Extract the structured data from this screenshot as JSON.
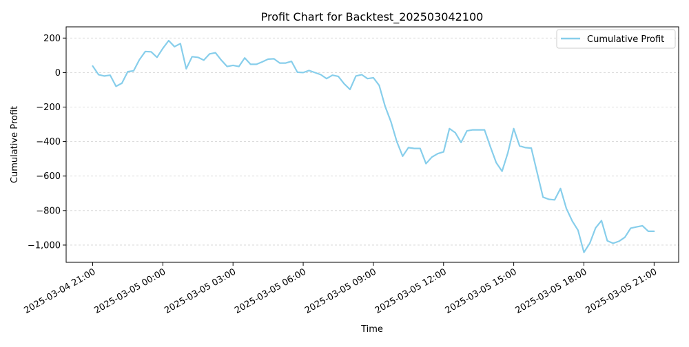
{
  "chart_data": {
    "type": "line",
    "title": "Profit Chart for Backtest_202503042100",
    "xlabel": "Time",
    "ylabel": "Cumulative Profit",
    "x_is_time": true,
    "xlim": [
      "2025-03-04 19:52",
      "2025-03-05 22:03"
    ],
    "ylim": [
      -1100,
      265
    ],
    "grid": {
      "y": true,
      "x": false,
      "style": "dashed"
    },
    "legend": {
      "position": "top-right",
      "entries": [
        "Cumulative Profit"
      ]
    },
    "x_ticks": [
      {
        "value": "2025-03-04 21:00",
        "label": "2025-03-04 21:00"
      },
      {
        "value": "2025-03-05 00:00",
        "label": "2025-03-05 00:00"
      },
      {
        "value": "2025-03-05 03:00",
        "label": "2025-03-05 03:00"
      },
      {
        "value": "2025-03-05 06:00",
        "label": "2025-03-05 06:00"
      },
      {
        "value": "2025-03-05 09:00",
        "label": "2025-03-05 09:00"
      },
      {
        "value": "2025-03-05 12:00",
        "label": "2025-03-05 12:00"
      },
      {
        "value": "2025-03-05 15:00",
        "label": "2025-03-05 15:00"
      },
      {
        "value": "2025-03-05 18:00",
        "label": "2025-03-05 18:00"
      },
      {
        "value": "2025-03-05 21:00",
        "label": "2025-03-05 21:00"
      }
    ],
    "y_ticks": [
      {
        "value": 200,
        "label": "200"
      },
      {
        "value": 0,
        "label": "0"
      },
      {
        "value": -200,
        "label": "−200"
      },
      {
        "value": -400,
        "label": "−400"
      },
      {
        "value": -600,
        "label": "−600"
      },
      {
        "value": -800,
        "label": "−800"
      },
      {
        "value": -1000,
        "label": "−1,000"
      }
    ],
    "series": [
      {
        "name": "Cumulative Profit",
        "color": "#87CEEB",
        "x": [
          "2025-03-04 21:00",
          "2025-03-04 21:15",
          "2025-03-04 21:30",
          "2025-03-04 21:45",
          "2025-03-04 22:00",
          "2025-03-04 22:15",
          "2025-03-04 22:30",
          "2025-03-04 22:45",
          "2025-03-04 23:00",
          "2025-03-04 23:15",
          "2025-03-04 23:30",
          "2025-03-04 23:45",
          "2025-03-05 00:00",
          "2025-03-05 00:15",
          "2025-03-05 00:30",
          "2025-03-05 00:45",
          "2025-03-05 01:00",
          "2025-03-05 01:15",
          "2025-03-05 01:30",
          "2025-03-05 01:45",
          "2025-03-05 02:00",
          "2025-03-05 02:15",
          "2025-03-05 02:30",
          "2025-03-05 02:45",
          "2025-03-05 03:00",
          "2025-03-05 03:15",
          "2025-03-05 03:30",
          "2025-03-05 03:45",
          "2025-03-05 04:00",
          "2025-03-05 04:15",
          "2025-03-05 04:30",
          "2025-03-05 04:45",
          "2025-03-05 05:00",
          "2025-03-05 05:15",
          "2025-03-05 05:30",
          "2025-03-05 05:45",
          "2025-03-05 06:00",
          "2025-03-05 06:15",
          "2025-03-05 06:30",
          "2025-03-05 06:45",
          "2025-03-05 07:00",
          "2025-03-05 07:15",
          "2025-03-05 07:30",
          "2025-03-05 07:45",
          "2025-03-05 08:00",
          "2025-03-05 08:15",
          "2025-03-05 08:30",
          "2025-03-05 08:45",
          "2025-03-05 09:00",
          "2025-03-05 09:15",
          "2025-03-05 09:30",
          "2025-03-05 09:45",
          "2025-03-05 10:00",
          "2025-03-05 10:15",
          "2025-03-05 10:30",
          "2025-03-05 10:45",
          "2025-03-05 11:00",
          "2025-03-05 11:15",
          "2025-03-05 11:30",
          "2025-03-05 11:45",
          "2025-03-05 12:00",
          "2025-03-05 12:15",
          "2025-03-05 12:30",
          "2025-03-05 12:45",
          "2025-03-05 13:00",
          "2025-03-05 13:15",
          "2025-03-05 13:30",
          "2025-03-05 13:45",
          "2025-03-05 14:00",
          "2025-03-05 14:15",
          "2025-03-05 14:30",
          "2025-03-05 14:45",
          "2025-03-05 15:00",
          "2025-03-05 15:15",
          "2025-03-05 15:30",
          "2025-03-05 15:45",
          "2025-03-05 16:00",
          "2025-03-05 16:15",
          "2025-03-05 16:30",
          "2025-03-05 16:45",
          "2025-03-05 17:00",
          "2025-03-05 17:15",
          "2025-03-05 17:30",
          "2025-03-05 17:45",
          "2025-03-05 18:00",
          "2025-03-05 18:15",
          "2025-03-05 18:30",
          "2025-03-05 18:45",
          "2025-03-05 19:00",
          "2025-03-05 19:15",
          "2025-03-05 19:30",
          "2025-03-05 19:45",
          "2025-03-05 20:00",
          "2025-03-05 20:15",
          "2025-03-05 20:30",
          "2025-03-05 20:45",
          "2025-03-05 21:00"
        ],
        "values": [
          38,
          -12,
          -20,
          -15,
          -80,
          -62,
          5,
          10,
          75,
          122,
          120,
          88,
          140,
          185,
          150,
          168,
          22,
          92,
          88,
          72,
          108,
          115,
          72,
          35,
          42,
          35,
          85,
          48,
          48,
          62,
          78,
          80,
          55,
          55,
          65,
          2,
          0,
          12,
          0,
          -12,
          -35,
          -15,
          -22,
          -65,
          -98,
          -20,
          -12,
          -35,
          -30,
          -75,
          -195,
          -285,
          -400,
          -485,
          -435,
          -440,
          -440,
          -528,
          -490,
          -470,
          -460,
          -325,
          -348,
          -405,
          -338,
          -332,
          -332,
          -332,
          -430,
          -522,
          -572,
          -465,
          -325,
          -425,
          -435,
          -438,
          -580,
          -722,
          -735,
          -738,
          -672,
          -788,
          -860,
          -915,
          -1042,
          -990,
          -900,
          -858,
          -975,
          -990,
          -978,
          -955,
          -902,
          -895,
          -888,
          -920,
          -920
        ]
      }
    ]
  }
}
